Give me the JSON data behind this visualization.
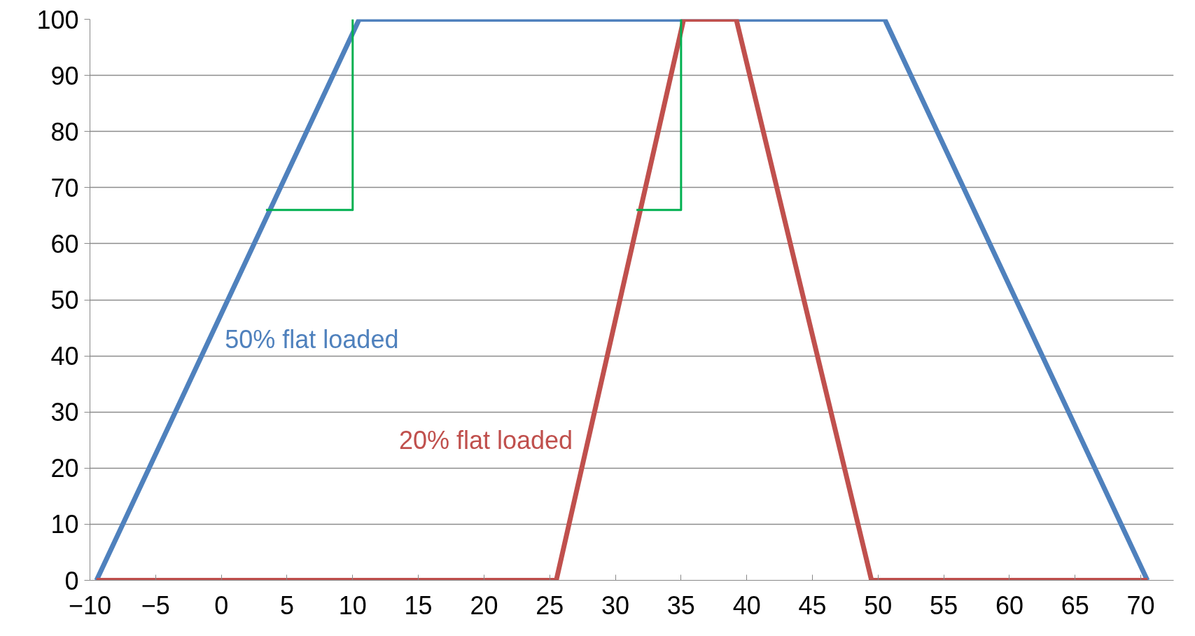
{
  "chart_data": {
    "type": "line",
    "xlim": [
      -10,
      72.5
    ],
    "ylim": [
      0,
      100
    ],
    "xticks": [
      -10,
      -5,
      0,
      5,
      10,
      15,
      20,
      25,
      30,
      35,
      40,
      45,
      50,
      55,
      60,
      65,
      70
    ],
    "yticks": [
      0,
      10,
      20,
      30,
      40,
      50,
      60,
      70,
      80,
      90,
      100
    ],
    "grid": "y",
    "legend": false,
    "marker": "none",
    "line_style": "solid",
    "series": [
      {
        "name": "50% flat loaded",
        "color": "#4f81bd",
        "x": [
          -9.5,
          10.5,
          50.5,
          70.5
        ],
        "values": [
          0,
          100,
          100,
          0
        ]
      },
      {
        "name": "20% flat loaded",
        "color": "#c0504d",
        "x": [
          -9.5,
          25.5,
          35.2,
          39.2,
          49.5,
          70.5
        ],
        "values": [
          0,
          0,
          100,
          100,
          0,
          0
        ]
      },
      {
        "color": "#00b050",
        "x": [
          3.4,
          10,
          10,
          null,
          31.6,
          35,
          35
        ],
        "values": [
          66,
          66,
          100,
          null,
          66,
          66,
          100
        ]
      }
    ]
  }
}
